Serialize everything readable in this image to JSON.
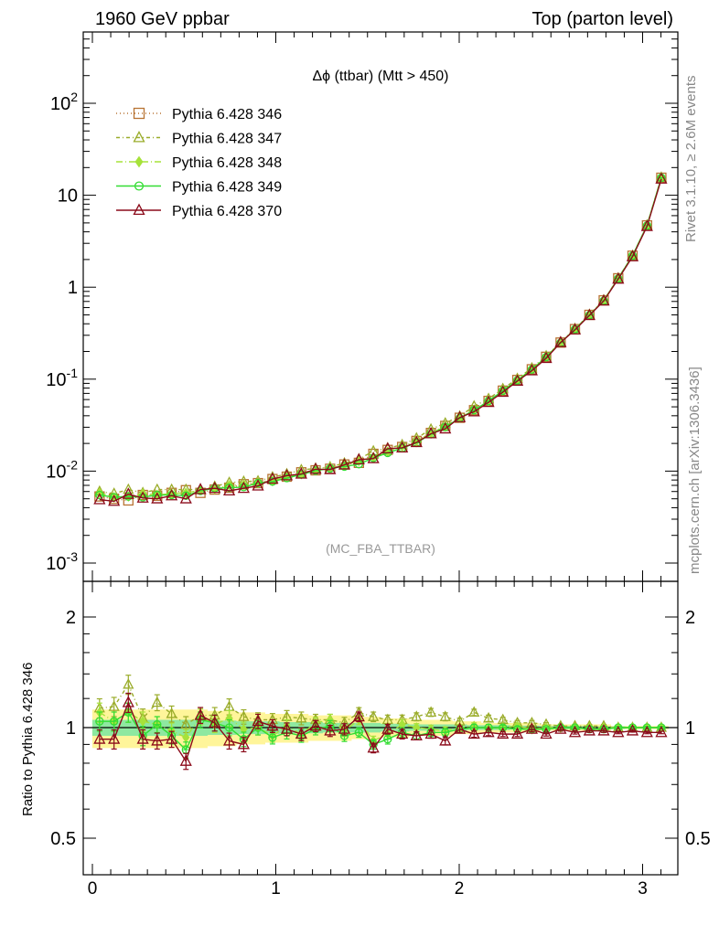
{
  "header": {
    "left": "1960 GeV ppbar",
    "right": "Top (parton level)"
  },
  "side_labels": {
    "rivet": "Rivet 3.1.10, ≥ 2.6M events",
    "mcplots": "mcplots.cern.ch [arXiv:1306.3436]"
  },
  "chart_data": [
    {
      "type": "line",
      "title": "Δϕ (ttbar) (Mtt > 450)",
      "watermark": "(MC_FBA_TTBAR)",
      "xlabel": "",
      "ylabel": "",
      "xlim": [
        -0.05,
        3.2
      ],
      "ylim": [
        0.001,
        300
      ],
      "yscale": "log",
      "xticks": [
        "0",
        "1",
        "2",
        "3"
      ],
      "yticks": [
        "10^-3",
        "10^-2",
        "10^-1",
        "1",
        "10",
        "10^2"
      ],
      "legend_position": "top-left",
      "x": [
        0.039,
        0.118,
        0.196,
        0.275,
        0.353,
        0.432,
        0.51,
        0.589,
        0.667,
        0.746,
        0.825,
        0.903,
        0.982,
        1.06,
        1.139,
        1.217,
        1.296,
        1.374,
        1.453,
        1.532,
        1.61,
        1.689,
        1.767,
        1.846,
        1.924,
        2.003,
        2.081,
        2.16,
        2.238,
        2.317,
        2.396,
        2.474,
        2.553,
        2.631,
        2.71,
        2.788,
        2.867,
        2.945,
        3.024,
        3.102
      ],
      "series": [
        {
          "name": "Pythia 6.428 346",
          "color": "#b87333",
          "marker": "square",
          "dash": "1,3",
          "values": [
            0.0053,
            0.005,
            0.0048,
            0.0055,
            0.0054,
            0.0058,
            0.0062,
            0.0058,
            0.0063,
            0.0066,
            0.0072,
            0.0074,
            0.0082,
            0.0087,
            0.0097,
            0.0102,
            0.0106,
            0.0118,
            0.0123,
            0.0154,
            0.017,
            0.0183,
            0.0213,
            0.026,
            0.031,
            0.038,
            0.046,
            0.058,
            0.075,
            0.098,
            0.128,
            0.175,
            0.25,
            0.35,
            0.5,
            0.72,
            1.25,
            2.2,
            4.7,
            15.5
          ]
        },
        {
          "name": "Pythia 6.428 347",
          "color": "#9aac2a",
          "marker": "triangle",
          "dash": "4,3,1,3",
          "values": [
            0.006,
            0.0057,
            0.0063,
            0.0058,
            0.0063,
            0.0063,
            0.0063,
            0.0063,
            0.0068,
            0.0075,
            0.0077,
            0.0078,
            0.0086,
            0.0093,
            0.0103,
            0.0107,
            0.0111,
            0.0122,
            0.0135,
            0.0165,
            0.0178,
            0.0193,
            0.0228,
            0.0285,
            0.0332,
            0.0395,
            0.0508,
            0.0612,
            0.0785,
            0.1012,
            0.1318,
            0.1785,
            0.2525,
            0.3535,
            0.504,
            0.7245,
            1.255,
            2.205,
            4.72,
            15.6
          ]
        },
        {
          "name": "Pythia 6.428 348",
          "color": "#a6e23a",
          "marker": "diamond",
          "dash": "7,3,1,3",
          "values": [
            0.0058,
            0.0052,
            0.0053,
            0.0057,
            0.0055,
            0.0057,
            0.0058,
            0.0062,
            0.0064,
            0.007,
            0.0071,
            0.0074,
            0.0078,
            0.0088,
            0.0093,
            0.0105,
            0.0111,
            0.0116,
            0.0129,
            0.0142,
            0.0163,
            0.0186,
            0.0213,
            0.0257,
            0.0305,
            0.0382,
            0.0465,
            0.0573,
            0.0752,
            0.0988,
            0.1268,
            0.1748,
            0.2512,
            0.3505,
            0.5015,
            0.722,
            1.2505,
            2.2,
            4.7,
            15.5
          ]
        },
        {
          "name": "Pythia 6.428 349",
          "color": "#33dd33",
          "marker": "circle",
          "dash": "",
          "values": [
            0.0055,
            0.0052,
            0.0053,
            0.0052,
            0.0055,
            0.0055,
            0.0054,
            0.0061,
            0.0065,
            0.0066,
            0.0067,
            0.0074,
            0.0077,
            0.0084,
            0.0092,
            0.0101,
            0.0107,
            0.0112,
            0.0119,
            0.0139,
            0.0158,
            0.0178,
            0.0203,
            0.0252,
            0.0302,
            0.0377,
            0.0459,
            0.0578,
            0.0748,
            0.0969,
            0.1273,
            0.1738,
            0.2488,
            0.3493,
            0.4965,
            0.7128,
            1.2438,
            2.2033,
            4.6807,
            15.5
          ]
        },
        {
          "name": "Pythia 6.428 370",
          "color": "#8b0a1a",
          "marker": "triangle",
          "dash": "",
          "values": [
            0.0049,
            0.0047,
            0.0056,
            0.0051,
            0.005,
            0.0054,
            0.005,
            0.0063,
            0.0065,
            0.0061,
            0.0065,
            0.0069,
            0.0082,
            0.0089,
            0.0093,
            0.0105,
            0.0104,
            0.0117,
            0.0133,
            0.0137,
            0.0175,
            0.0179,
            0.0205,
            0.0255,
            0.0288,
            0.0382,
            0.0442,
            0.0559,
            0.0722,
            0.0953,
            0.1236,
            0.1684,
            0.2505,
            0.3437,
            0.4935,
            0.7098,
            1.2263,
            2.1495,
            4.585,
            15.0
          ]
        }
      ]
    },
    {
      "type": "line",
      "xlabel": "",
      "ylabel": "Ratio to Pythia 6.428 346",
      "xlim": [
        -0.05,
        3.2
      ],
      "ylim": [
        0.4,
        2.3
      ],
      "yscale": "log",
      "xticks": [
        "0",
        "1",
        "2",
        "3"
      ],
      "yticks": [
        "0.5",
        "1",
        "2"
      ],
      "x": [
        0.039,
        0.118,
        0.196,
        0.275,
        0.353,
        0.432,
        0.51,
        0.589,
        0.667,
        0.746,
        0.825,
        0.903,
        0.982,
        1.06,
        1.139,
        1.217,
        1.296,
        1.374,
        1.453,
        1.532,
        1.61,
        1.689,
        1.767,
        1.846,
        1.924,
        2.003,
        2.081,
        2.16,
        2.238,
        2.317,
        2.396,
        2.474,
        2.553,
        2.631,
        2.71,
        2.788,
        2.867,
        2.945,
        3.024,
        3.102
      ],
      "band_yellow": [
        0.12,
        0.12,
        0.12,
        0.12,
        0.12,
        0.12,
        0.12,
        0.12,
        0.11,
        0.11,
        0.1,
        0.1,
        0.09,
        0.09,
        0.09,
        0.08,
        0.08,
        0.08,
        0.07,
        0.07,
        0.06,
        0.06,
        0.05,
        0.05,
        0.05,
        0.04,
        0.04,
        0.03,
        0.03,
        0.03,
        0.03,
        0.02,
        0.02,
        0.02,
        0.02,
        0.02,
        0.01,
        0.01,
        0.01,
        0.01
      ],
      "band_green": [
        0.05,
        0.05,
        0.05,
        0.05,
        0.05,
        0.05,
        0.05,
        0.05,
        0.045,
        0.045,
        0.04,
        0.04,
        0.04,
        0.035,
        0.035,
        0.035,
        0.03,
        0.03,
        0.03,
        0.03,
        0.025,
        0.025,
        0.02,
        0.02,
        0.02,
        0.02,
        0.015,
        0.015,
        0.015,
        0.012,
        0.012,
        0.01,
        0.01,
        0.01,
        0.01,
        0.008,
        0.008,
        0.006,
        0.006,
        0.005
      ],
      "series": [
        {
          "name": "Pythia 6.428 347",
          "color": "#9aac2a",
          "marker": "triangle",
          "dash": "4,3,1,3",
          "values": [
            1.13,
            1.14,
            1.31,
            1.06,
            1.17,
            1.09,
            1.02,
            1.08,
            1.08,
            1.14,
            1.07,
            1.05,
            1.05,
            1.07,
            1.06,
            1.05,
            1.05,
            1.03,
            1.1,
            1.07,
            1.05,
            1.05,
            1.07,
            1.1,
            1.07,
            1.04,
            1.1,
            1.06,
            1.05,
            1.03,
            1.03,
            1.02,
            1.01,
            1.01,
            1.01,
            1.01,
            1.0,
            1.0,
            1.0,
            1.0
          ]
        },
        {
          "name": "Pythia 6.428 348",
          "color": "#a6e23a",
          "marker": "diamond",
          "dash": "7,3,1,3",
          "values": [
            1.1,
            1.04,
            1.1,
            1.04,
            1.02,
            0.98,
            0.94,
            1.07,
            1.02,
            1.06,
            0.99,
            1.0,
            0.95,
            1.01,
            0.96,
            1.03,
            1.05,
            0.98,
            1.05,
            0.92,
            0.96,
            1.02,
            1.0,
            0.99,
            0.98,
            1.0,
            1.01,
            0.99,
            1.0,
            1.01,
            0.99,
            1.0,
            1.0,
            1.0,
            1.0,
            1.0,
            1.0,
            1.0,
            1.0,
            1.0
          ]
        },
        {
          "name": "Pythia 6.428 349",
          "color": "#33dd33",
          "marker": "circle",
          "dash": "",
          "values": [
            1.04,
            1.04,
            1.1,
            0.95,
            1.02,
            0.95,
            0.87,
            1.05,
            1.03,
            1.0,
            0.93,
            1.0,
            0.94,
            0.97,
            0.95,
            0.99,
            1.01,
            0.95,
            0.97,
            0.9,
            0.93,
            0.97,
            0.95,
            0.97,
            0.97,
            0.99,
            1.0,
            1.0,
            1.0,
            0.99,
            0.99,
            0.99,
            1.0,
            1.0,
            0.99,
            0.99,
            1.0,
            1.0,
            1.0,
            1.0
          ]
        },
        {
          "name": "Pythia 6.428 370",
          "color": "#8b0a1a",
          "marker": "triangle",
          "dash": "",
          "values": [
            0.93,
            0.93,
            1.17,
            0.93,
            0.92,
            0.93,
            0.81,
            1.08,
            1.03,
            0.92,
            0.9,
            1.04,
            1.01,
            0.99,
            0.96,
            1.01,
            0.98,
            0.99,
            1.07,
            0.88,
            0.99,
            0.96,
            0.95,
            0.96,
            0.92,
            0.99,
            0.96,
            0.97,
            0.96,
            0.96,
            0.99,
            0.96,
            0.99,
            0.97,
            0.98,
            0.98,
            0.97,
            0.98,
            0.97,
            0.97
          ]
        }
      ]
    }
  ]
}
